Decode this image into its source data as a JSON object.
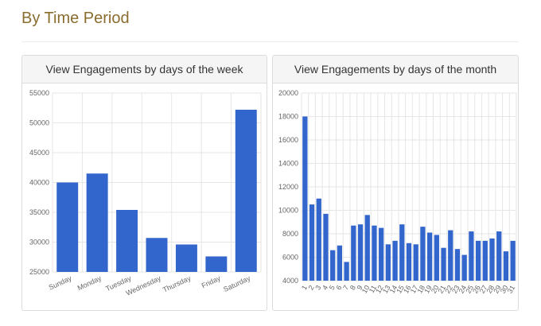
{
  "page": {
    "section_title": "By Time Period"
  },
  "colors": {
    "bar": "#3366cc",
    "grid": "#e6e6e6",
    "title_accent": "#8a6d2f"
  },
  "chart_data": [
    {
      "type": "bar",
      "title": "View Engagements by days of the week",
      "categories": [
        "Sunday",
        "Monday",
        "Tuesday",
        "Wednesday",
        "Thursday",
        "Friday",
        "Saturday"
      ],
      "values": [
        40000,
        41500,
        35400,
        30700,
        29600,
        27600,
        52200
      ],
      "ylim": [
        25000,
        55000
      ],
      "yticks": [
        "25000",
        "30000",
        "35000",
        "40000",
        "45000",
        "50000",
        "55000"
      ],
      "grid": true
    },
    {
      "type": "bar",
      "title": "View Engagements by days of the month",
      "categories": [
        "1",
        "2",
        "3",
        "4",
        "5",
        "6",
        "7",
        "8",
        "9",
        "10",
        "11",
        "12",
        "13",
        "14",
        "15",
        "16",
        "17",
        "18",
        "19",
        "20",
        "21",
        "22",
        "23",
        "24",
        "25",
        "26",
        "27",
        "28",
        "29",
        "30",
        "31"
      ],
      "values": [
        18000,
        10500,
        11000,
        9700,
        6600,
        7000,
        5600,
        8700,
        8800,
        9600,
        8700,
        8500,
        7100,
        7400,
        8800,
        7200,
        7100,
        8600,
        8100,
        7900,
        6800,
        8300,
        6700,
        6200,
        8200,
        7400,
        7400,
        7600,
        8200,
        6500,
        7400
      ],
      "ylim": [
        4000,
        20000
      ],
      "yticks": [
        "4000",
        "6000",
        "8000",
        "10000",
        "12000",
        "14000",
        "16000",
        "18000",
        "20000"
      ],
      "grid": true
    }
  ]
}
